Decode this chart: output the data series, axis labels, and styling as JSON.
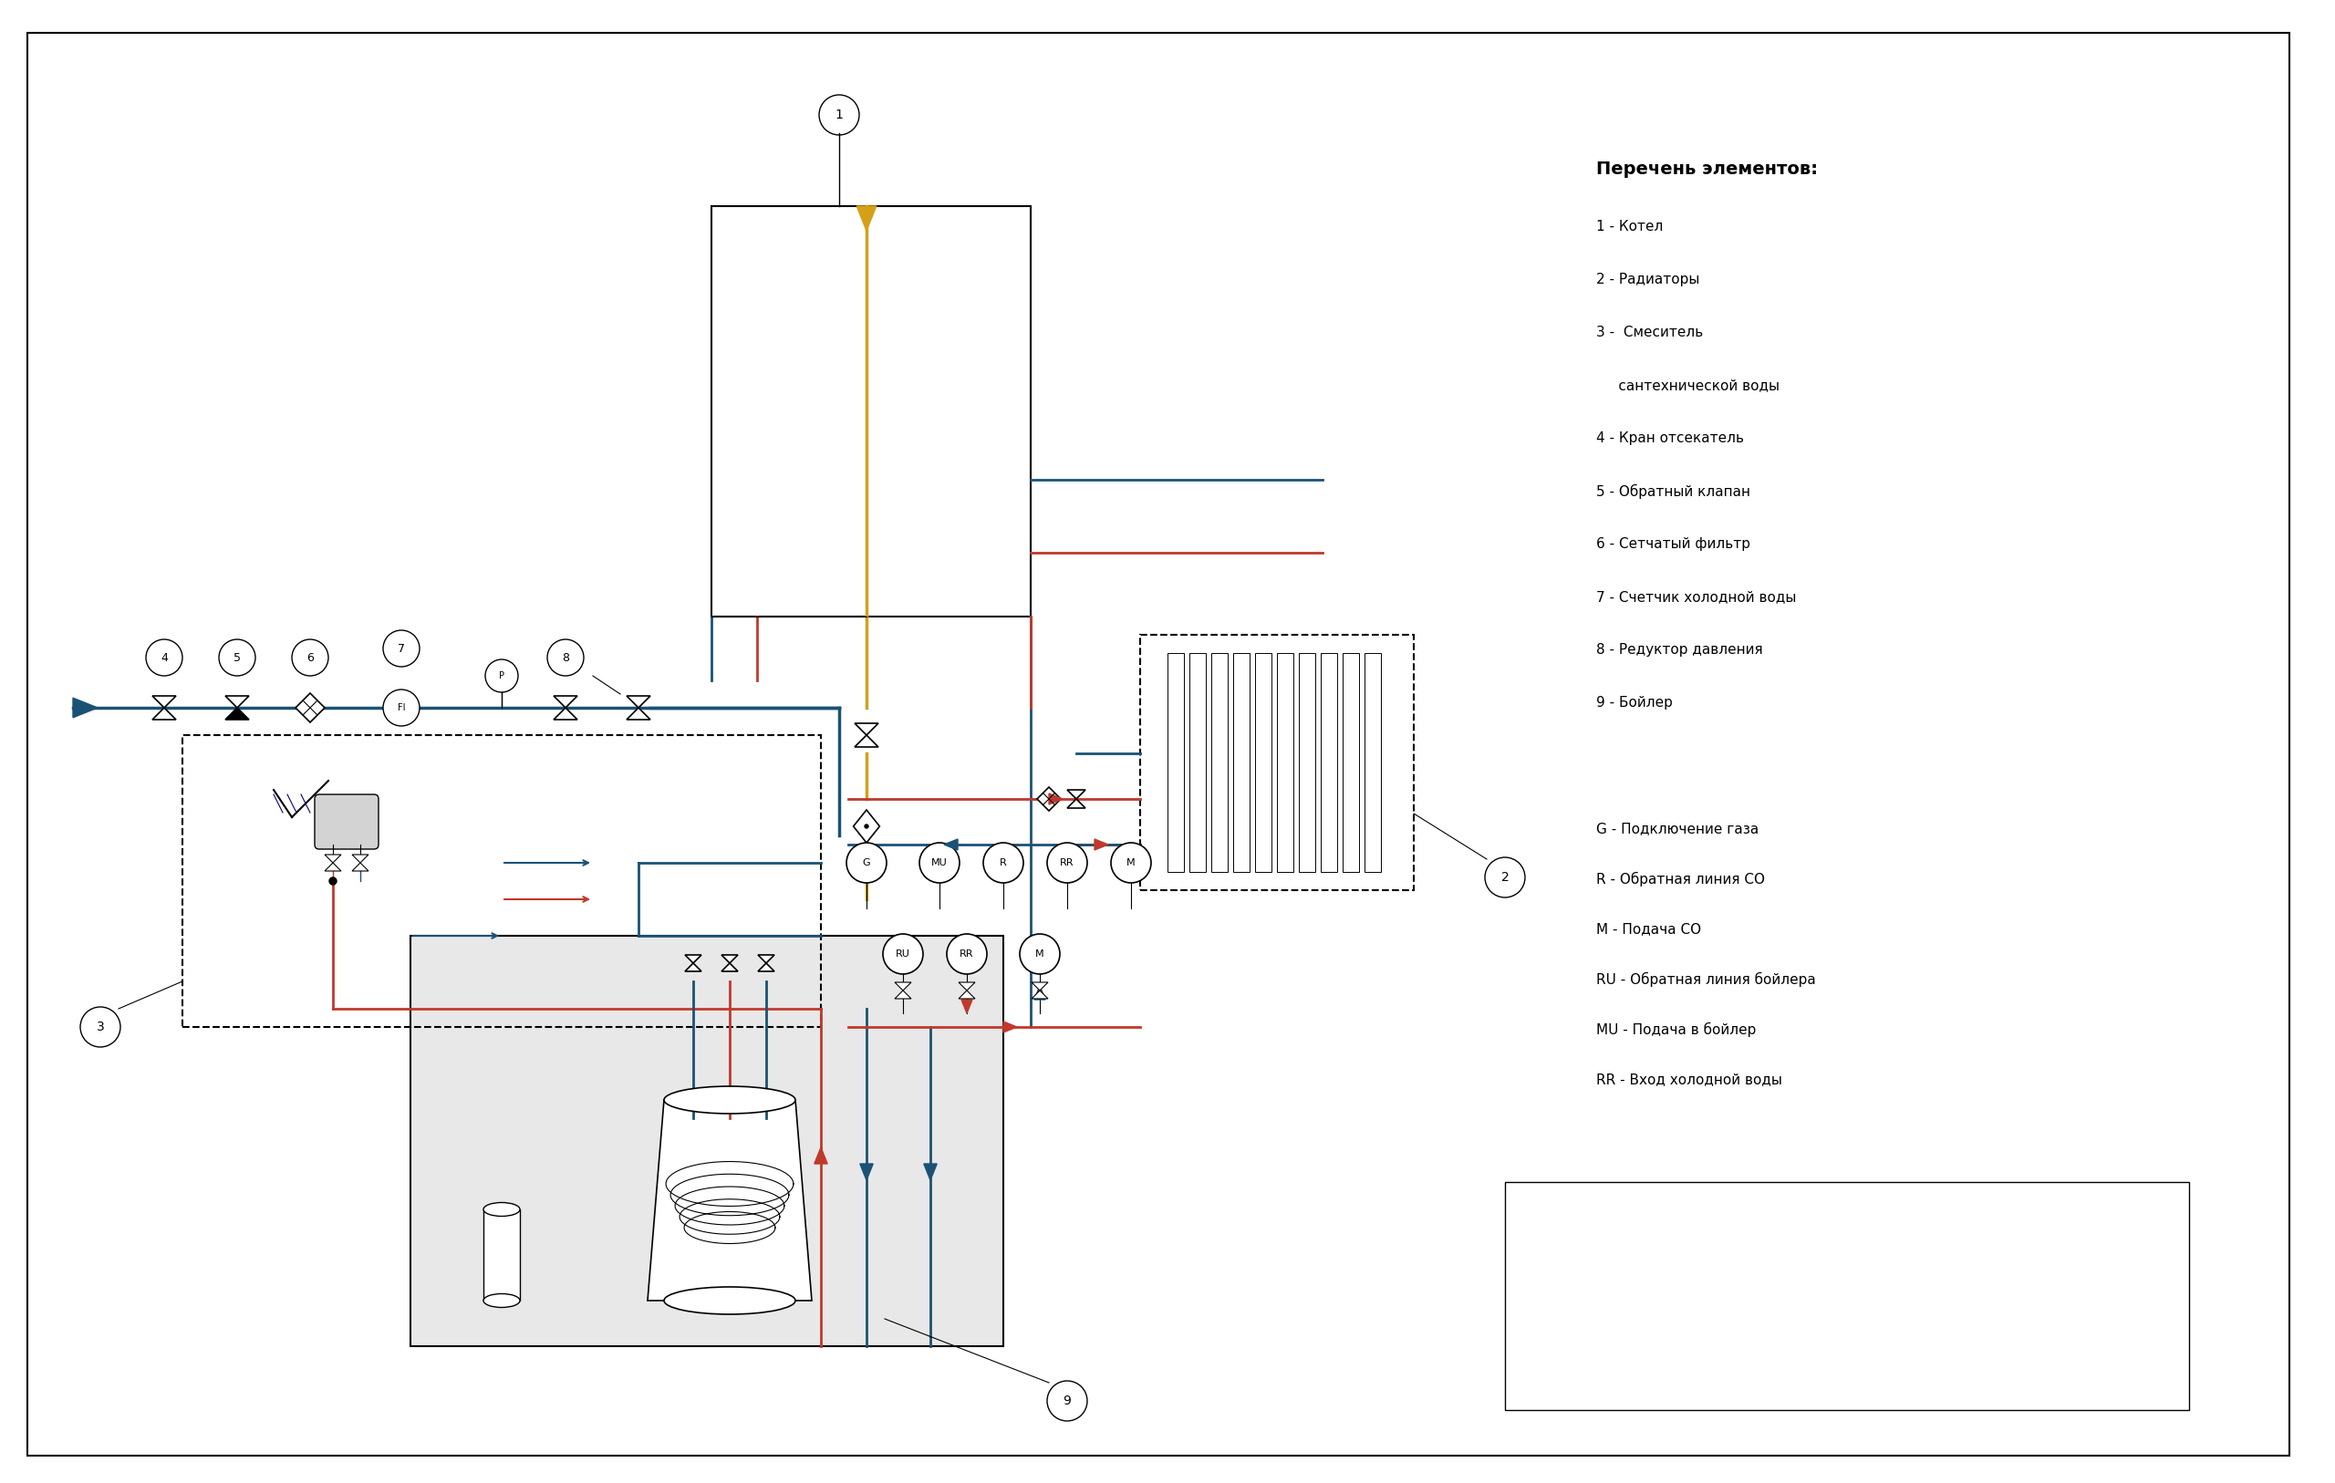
{
  "bg_color": "#ffffff",
  "border_color": "#000000",
  "title_text": "Перечень элементов:",
  "legend_items": [
    "1 - Котел",
    "2 - Радиаторы",
    "3 -  Смеситель",
    "     сантехнической воды",
    "4 - Кран отсекатель",
    "5 - Обратный клапан",
    "6 - Сетчатый фильтр",
    "7 - Счетчик холодной воды",
    "8 - Редуктор давления",
    "9 - Бойлер"
  ],
  "legend2_items": [
    "G - Подключение газа",
    "R - Обратная линия СО",
    "M - Подача СО",
    "RU - Обратная линия бойлера",
    "MU - Подача в бойлер",
    "RR - Вход холодной воды"
  ],
  "cold_water_color": "#1a5276",
  "hot_supply_color": "#c0392b",
  "hot_return_color": "#c0392b",
  "co_supply_color": "#c0392b",
  "co_return_color": "#1a5276",
  "boiler_return_color": "#1a5276",
  "gas_color": "#d4a017",
  "line_width": 2.0
}
